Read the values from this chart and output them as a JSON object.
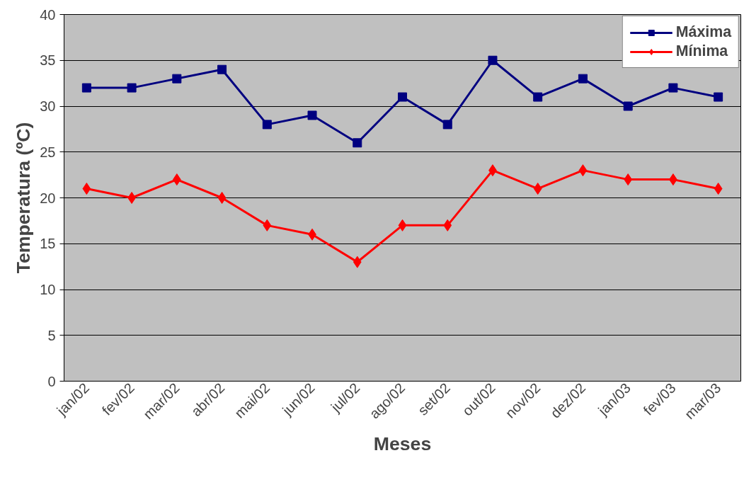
{
  "chart_data": {
    "type": "line",
    "xlabel": "Meses",
    "ylabel": "Temperatura (ºC)",
    "categories": [
      "jan/02",
      "fev/02",
      "mar/02",
      "abr/02",
      "mai/02",
      "jun/02",
      "jul/02",
      "ago/02",
      "set/02",
      "out/02",
      "nov/02",
      "dez/02",
      "jan/03",
      "fev/03",
      "mar/03"
    ],
    "series": [
      {
        "name": "Máxima",
        "color": "#000080",
        "marker": "square",
        "values": [
          32,
          32,
          33,
          34,
          28,
          29,
          26,
          31,
          28,
          35,
          31,
          33,
          30,
          32,
          31
        ]
      },
      {
        "name": "Mínima",
        "color": "#ff0000",
        "marker": "diamond",
        "values": [
          21,
          20,
          22,
          20,
          17,
          16,
          13,
          17,
          17,
          23,
          21,
          23,
          22,
          22,
          21
        ]
      }
    ],
    "ylim": [
      0,
      40
    ],
    "yticks": [
      0,
      5,
      10,
      15,
      20,
      25,
      30,
      35,
      40
    ],
    "grid": "y",
    "legend": "top right",
    "line_style": "solid"
  }
}
